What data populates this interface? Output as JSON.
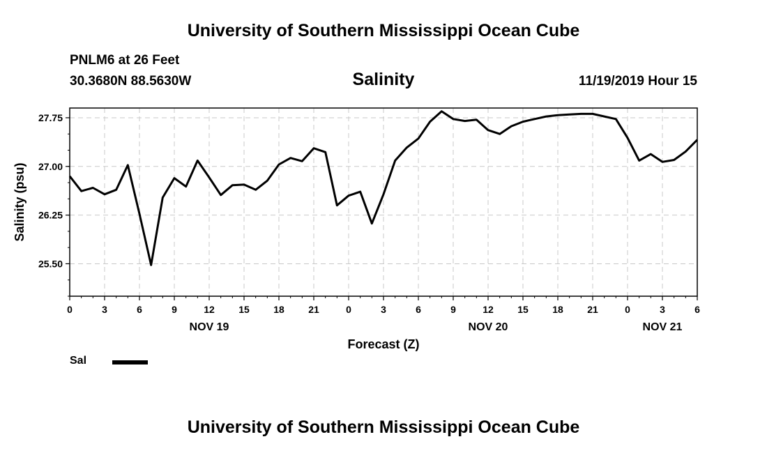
{
  "header": {
    "title": "University of Southern Mississippi Ocean Cube",
    "station": "PNLM6 at 26 Feet",
    "coordinates": "30.3680N 88.5630W",
    "chart_title": "Salinity",
    "run_time": "11/19/2019 Hour 15"
  },
  "footer": {
    "title": "University of Southern Mississippi Ocean Cube"
  },
  "legend": {
    "label": "Sal"
  },
  "colors": {
    "line": "#000000",
    "grid": "#c8c8c8",
    "frame": "#000000"
  },
  "chart_data": {
    "type": "line",
    "title": "Salinity",
    "xlabel": "Forecast (Z)",
    "ylabel": "Salinity (psu)",
    "grid": true,
    "legend_position": "bottom-left",
    "xlim": [
      0,
      54
    ],
    "ylim": [
      25.0,
      27.9
    ],
    "y_ticks": [
      "25.50",
      "26.25",
      "27.00",
      "27.75"
    ],
    "y_tick_values": [
      25.5,
      26.25,
      27.0,
      27.75
    ],
    "x_tick_labels": [
      "0",
      "3",
      "6",
      "9",
      "12",
      "15",
      "18",
      "21",
      "0",
      "3",
      "6",
      "9",
      "12",
      "15",
      "18",
      "21",
      "0",
      "3",
      "6"
    ],
    "date_labels": [
      {
        "label": "NOV 19",
        "hour_index": 12
      },
      {
        "label": "NOV 20",
        "hour_index": 36
      },
      {
        "label": "NOV 21",
        "hour_index": 51
      }
    ],
    "series": [
      {
        "name": "Sal",
        "x": [
          0,
          1,
          2,
          3,
          4,
          5,
          6,
          7,
          8,
          9,
          10,
          11,
          12,
          13,
          14,
          15,
          16,
          17,
          18,
          19,
          20,
          21,
          22,
          23,
          24,
          25,
          26,
          27,
          28,
          29,
          30,
          31,
          32,
          33,
          34,
          35,
          36,
          37,
          38,
          39,
          40,
          41,
          42,
          43,
          44,
          45,
          46,
          47,
          48,
          49,
          50,
          51,
          52,
          53,
          54
        ],
        "values": [
          26.85,
          26.62,
          26.67,
          26.57,
          26.64,
          27.02,
          26.27,
          25.48,
          26.52,
          26.82,
          26.69,
          27.09,
          26.83,
          26.56,
          26.71,
          26.72,
          26.64,
          26.78,
          27.03,
          27.13,
          27.08,
          27.28,
          27.22,
          26.4,
          26.55,
          26.61,
          26.12,
          26.57,
          27.09,
          27.29,
          27.43,
          27.69,
          27.85,
          27.73,
          27.7,
          27.72,
          27.56,
          27.5,
          27.62,
          27.69,
          27.73,
          27.77,
          27.79,
          27.8,
          27.81,
          27.81,
          27.77,
          27.73,
          27.44,
          27.09,
          27.19,
          27.07,
          27.1,
          27.23,
          27.41
        ]
      }
    ]
  }
}
